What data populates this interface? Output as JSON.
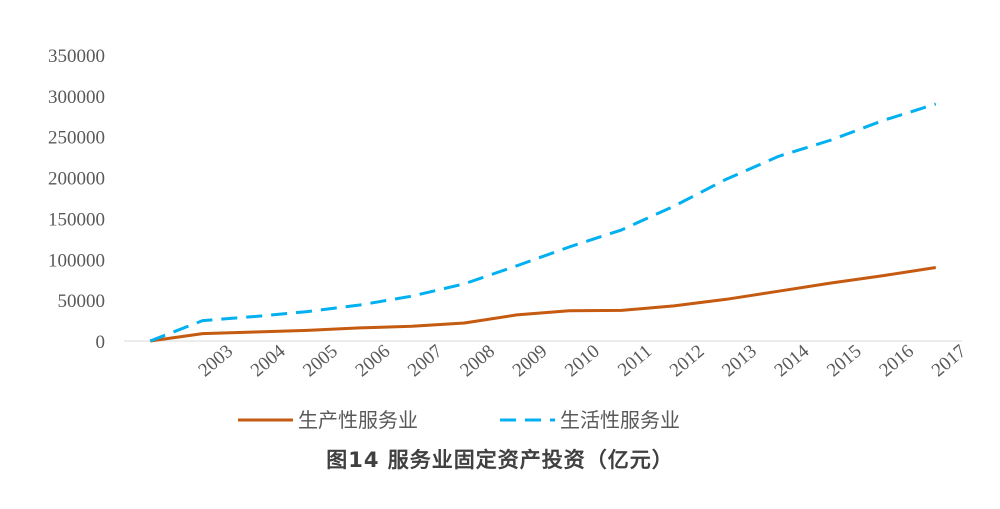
{
  "chart_data": {
    "type": "line",
    "title": "图14  服务业固定资产投资（亿元）",
    "categories": [
      "",
      "2003",
      "2004",
      "2005",
      "2006",
      "2007",
      "2008",
      "2009",
      "2010",
      "2011",
      "2012",
      "2013",
      "2014",
      "2015",
      "2016",
      "2017"
    ],
    "series": [
      {
        "name": "生产性服务业",
        "color": "#C55A11",
        "style": "solid",
        "values": [
          0,
          9000,
          11000,
          13000,
          16000,
          18000,
          22000,
          32000,
          37000,
          37500,
          43000,
          51000,
          61000,
          71000,
          80000,
          90000
        ]
      },
      {
        "name": "生活性服务业",
        "color": "#00B0F0",
        "style": "dashed",
        "values": [
          0,
          25000,
          30000,
          36000,
          44000,
          55000,
          70000,
          92000,
          115000,
          136000,
          165000,
          198000,
          226000,
          246000,
          270000,
          290000
        ]
      }
    ],
    "ylim": [
      0,
      350000
    ],
    "yticks": [
      "0",
      "50000",
      "100000",
      "150000",
      "200000",
      "250000",
      "300000",
      "350000"
    ],
    "grid": false,
    "legend_position": "bottom"
  }
}
